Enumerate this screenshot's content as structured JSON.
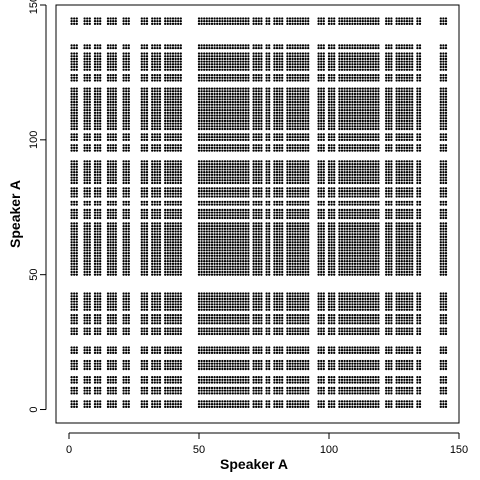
{
  "chart_data": {
    "type": "scatter",
    "title": "",
    "xlabel": "Speaker A",
    "ylabel": "Speaker A",
    "xlim": [
      -5,
      150
    ],
    "ylim": [
      -5,
      150
    ],
    "xticks": [
      0,
      50,
      100,
      150
    ],
    "yticks": [
      0,
      50,
      100,
      150
    ],
    "grid": false,
    "legend": "none",
    "point_color": "#000000",
    "point_style": "filled-circle",
    "pattern": "recurrence plot: a point at (i, j) whenever token i and token j are identical",
    "active_positions": [
      1,
      2,
      3,
      6,
      7,
      8,
      10,
      11,
      12,
      15,
      16,
      17,
      18,
      21,
      22,
      23,
      28,
      29,
      30,
      32,
      33,
      34,
      35,
      37,
      38,
      39,
      40,
      41,
      42,
      43,
      50,
      51,
      52,
      53,
      54,
      55,
      56,
      57,
      58,
      59,
      60,
      61,
      62,
      63,
      64,
      65,
      66,
      67,
      68,
      69,
      71,
      72,
      73,
      74,
      76,
      77,
      79,
      80,
      81,
      82,
      84,
      85,
      86,
      87,
      88,
      89,
      90,
      91,
      92,
      96,
      97,
      98,
      100,
      101,
      102,
      104,
      105,
      106,
      107,
      108,
      109,
      110,
      111,
      112,
      113,
      114,
      115,
      116,
      117,
      118,
      119,
      122,
      123,
      124,
      126,
      127,
      128,
      129,
      130,
      131,
      132,
      134,
      135,
      143,
      144,
      145
    ],
    "categories_of_positions": [
      1,
      2,
      3,
      6,
      7,
      8,
      10,
      11,
      12,
      15,
      16,
      17,
      18,
      21,
      22,
      23,
      28,
      29,
      30,
      32,
      33,
      34,
      35,
      37,
      38,
      39,
      40,
      41,
      42,
      43,
      50,
      51,
      52,
      53,
      54,
      55,
      56,
      57,
      58,
      59,
      60,
      61,
      62,
      63,
      64,
      65,
      66,
      67,
      68,
      69,
      71,
      72,
      73,
      74,
      76,
      77,
      79,
      80,
      81,
      82,
      84,
      85,
      86,
      87,
      88,
      89,
      90,
      91,
      92,
      96,
      97,
      98,
      100,
      101,
      102,
      104,
      105,
      106,
      107,
      108,
      109,
      110,
      111,
      112,
      113,
      114,
      115,
      116,
      117,
      118,
      119,
      122,
      123,
      124,
      126,
      127,
      128,
      129,
      130,
      131,
      132,
      134,
      135,
      143,
      144,
      145
    ]
  }
}
